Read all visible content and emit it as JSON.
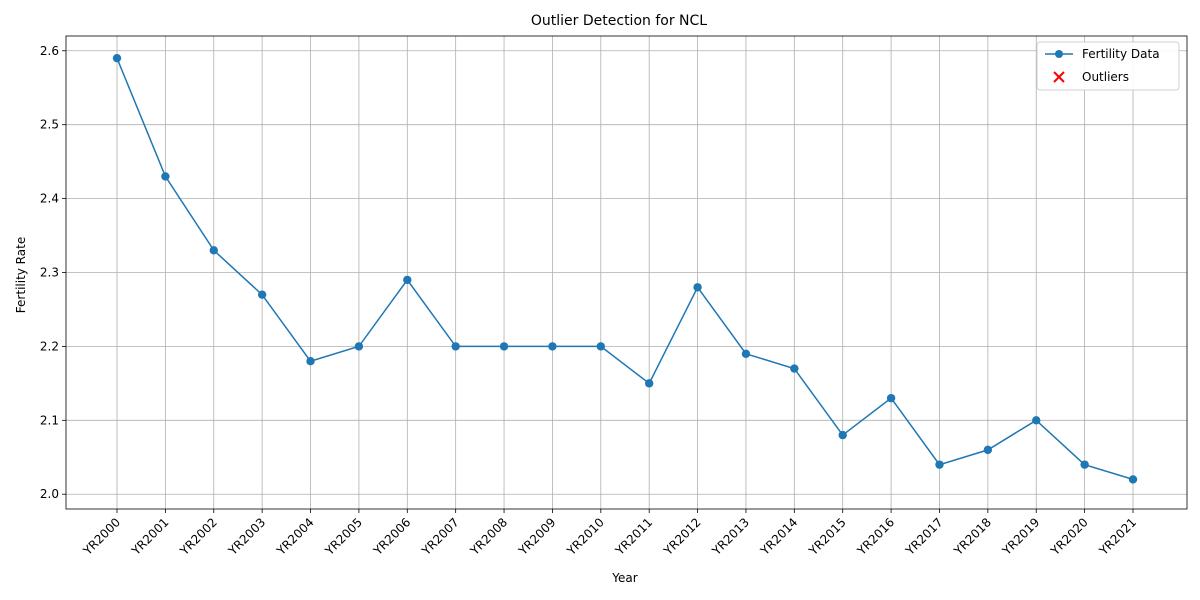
{
  "chart_data": {
    "type": "line",
    "title": "Outlier Detection for NCL",
    "xlabel": "Year",
    "ylabel": "Fertility Rate",
    "categories": [
      "YR2000",
      "YR2001",
      "YR2002",
      "YR2003",
      "YR2004",
      "YR2005",
      "YR2006",
      "YR2007",
      "YR2008",
      "YR2009",
      "YR2010",
      "YR2011",
      "YR2012",
      "YR2013",
      "YR2014",
      "YR2015",
      "YR2016",
      "YR2017",
      "YR2018",
      "YR2019",
      "YR2020",
      "YR2021"
    ],
    "ylim": [
      1.98,
      2.62
    ],
    "yticks": [
      "2.0",
      "2.1",
      "2.2",
      "2.3",
      "2.4",
      "2.5",
      "2.6"
    ],
    "ytick_values": [
      2.0,
      2.1,
      2.2,
      2.3,
      2.4,
      2.5,
      2.6
    ],
    "grid": true,
    "legend_position": "top-right",
    "series": [
      {
        "name": "Fertility Data",
        "values": [
          2.59,
          2.43,
          2.33,
          2.27,
          2.18,
          2.2,
          2.29,
          2.2,
          2.2,
          2.2,
          2.2,
          2.15,
          2.28,
          2.19,
          2.17,
          2.08,
          2.13,
          2.04,
          2.06,
          2.1,
          2.04,
          2.02
        ],
        "color": "#1f77b4"
      }
    ],
    "outliers": {
      "name": "Outliers",
      "color": "#ff0000",
      "points": []
    }
  }
}
